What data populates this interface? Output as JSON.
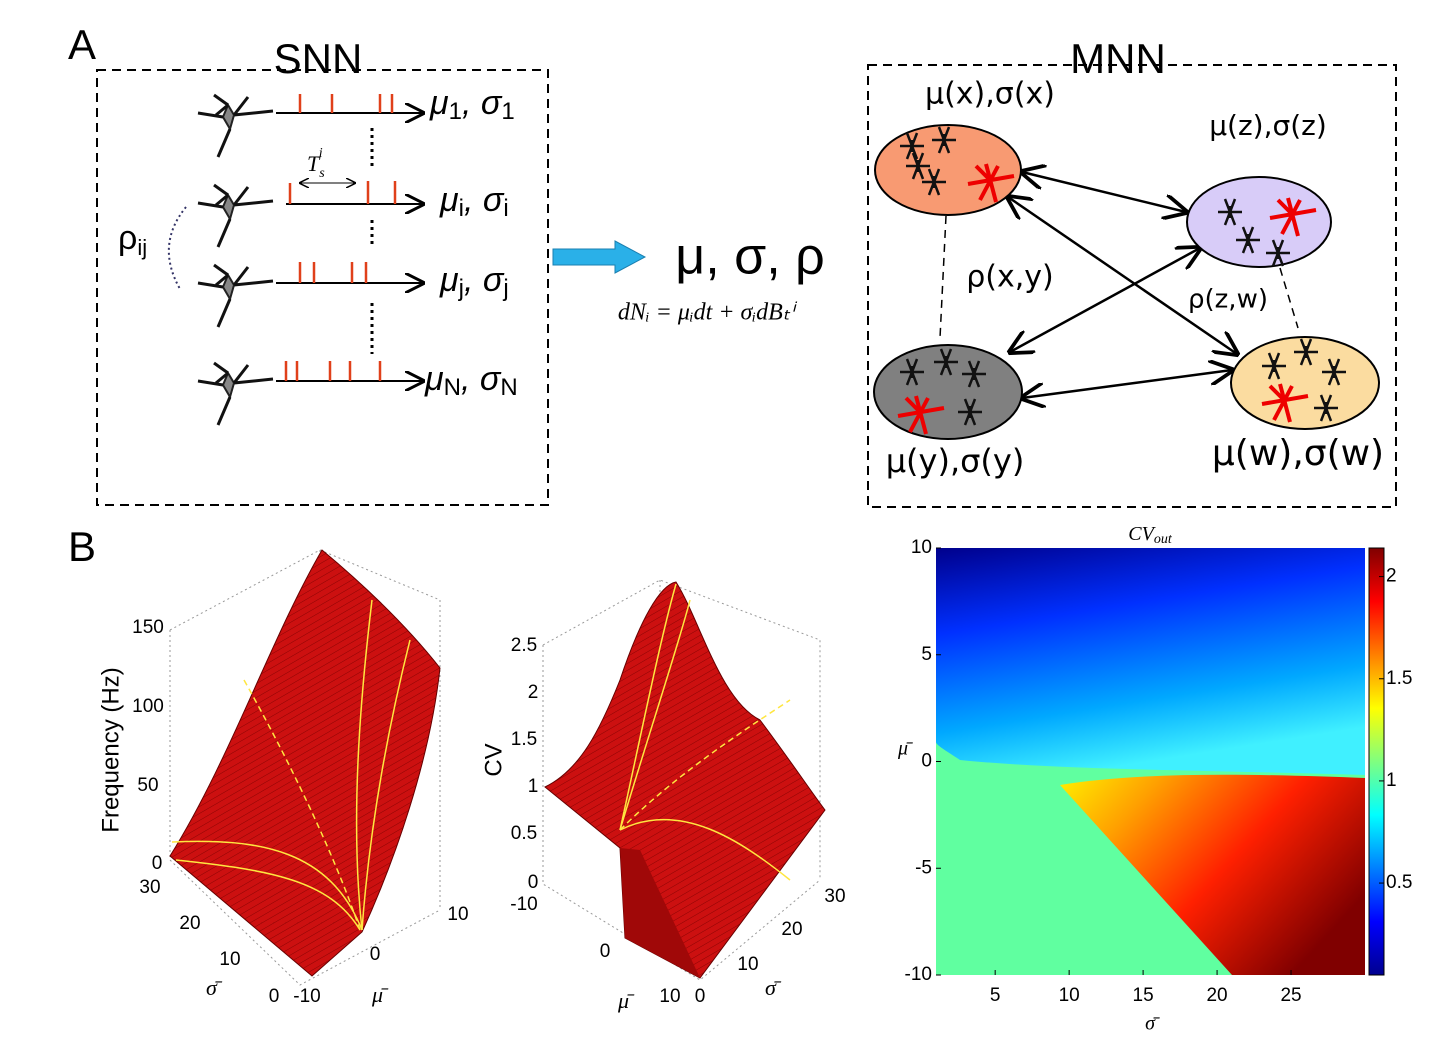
{
  "panel_a": {
    "label": "A",
    "snn": {
      "title": "SNN",
      "outputs": [
        {
          "mean": "μ",
          "std": "σ",
          "index": "1"
        },
        {
          "mean": "μ",
          "std": "σ",
          "index": "i"
        },
        {
          "mean": "μ",
          "std": "σ",
          "index": "j"
        },
        {
          "mean": "μ",
          "std": "σ",
          "index": "N"
        }
      ],
      "separator": ", ",
      "interval": {
        "base": "T",
        "sub": "s",
        "sup": "i"
      },
      "correlation": {
        "base": "ρ",
        "sub": "ij"
      }
    },
    "transform": {
      "moments": "μ, σ, ρ",
      "equation": "dNᵢ = μᵢdt + σᵢdBₜⁱ"
    },
    "mnn": {
      "title": "MNN",
      "nodes": {
        "x": "μ(x),σ(x)",
        "z": "μ(z),σ(z)",
        "y": "μ(y),σ(y)",
        "w": "μ(w),σ(w)"
      },
      "correlations": {
        "xy": "ρ(x,y)",
        "zw": "ρ(z,w)"
      }
    }
  },
  "panel_b": {
    "label": "B",
    "frequency_surface": {
      "zlabel": "Frequency (Hz)",
      "zticks": [
        0,
        50,
        100,
        150
      ],
      "sigma_label": "σ̄",
      "sigma_ticks": [
        0,
        10,
        20,
        30
      ],
      "mu_label": "μ̄",
      "mu_ticks": [
        -10,
        0,
        10
      ]
    },
    "cv_surface": {
      "zlabel": "CV",
      "zticks": [
        0,
        0.5,
        1,
        1.5,
        2,
        2.5
      ],
      "mu_label": "μ̄",
      "mu_ticks": [
        -10,
        0,
        10
      ],
      "sigma_label": "σ̄",
      "sigma_ticks": [
        0,
        10,
        20,
        30
      ]
    },
    "heatmap": {
      "title": {
        "base": "CV",
        "sub": "out"
      },
      "xlabel": "σ̄",
      "ylabel": "μ̄",
      "xlim": [
        1,
        30
      ],
      "xticks": [
        5,
        10,
        15,
        20,
        25
      ],
      "ylim": [
        -10,
        10
      ],
      "yticks": [
        -10,
        -5,
        0,
        5,
        10
      ],
      "clim": [
        0.05,
        2.14
      ],
      "cticks": [
        0.5,
        1,
        1.5,
        2
      ]
    }
  }
}
